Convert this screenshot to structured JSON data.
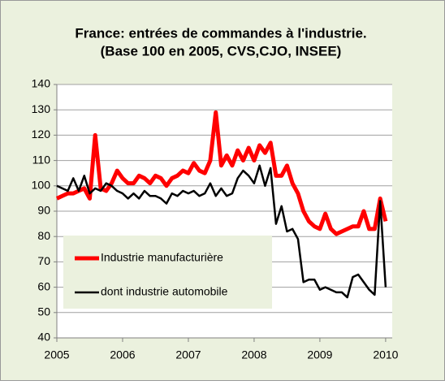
{
  "chart_data": {
    "type": "line",
    "title": "France: entrées de commandes à l'industrie.",
    "subtitle": "(Base 100 en 2005, CVS,CJO, INSEE)",
    "x": [
      2005,
      2005.083,
      2005.167,
      2005.25,
      2005.333,
      2005.417,
      2005.5,
      2005.583,
      2005.667,
      2005.75,
      2005.833,
      2005.917,
      2006,
      2006.083,
      2006.167,
      2006.25,
      2006.333,
      2006.417,
      2006.5,
      2006.583,
      2006.667,
      2006.75,
      2006.833,
      2006.917,
      2007,
      2007.083,
      2007.167,
      2007.25,
      2007.333,
      2007.417,
      2007.5,
      2007.583,
      2007.667,
      2007.75,
      2007.833,
      2007.917,
      2008,
      2008.083,
      2008.167,
      2008.25,
      2008.333,
      2008.417,
      2008.5,
      2008.583,
      2008.667,
      2008.75,
      2008.833,
      2008.917,
      2009,
      2009.083,
      2009.167,
      2009.25,
      2009.333,
      2009.417,
      2009.5,
      2009.583,
      2009.667,
      2009.75,
      2009.833,
      2009.917,
      2010
    ],
    "series": [
      {
        "name": "Industrie manufacturière",
        "color": "#ff0000",
        "width": 5,
        "values": [
          95,
          96,
          97,
          97,
          98,
          99,
          95,
          120,
          99,
          98,
          101,
          106,
          103,
          101,
          101,
          104,
          103,
          101,
          104,
          103,
          100,
          103,
          104,
          106,
          105,
          109,
          106,
          105,
          110,
          129,
          108,
          112,
          108,
          114,
          110,
          115,
          110,
          116,
          113,
          117,
          104,
          104,
          108,
          101,
          97,
          90,
          86,
          84,
          83,
          89,
          83,
          81,
          82,
          83,
          84,
          84,
          90,
          83,
          83,
          95,
          86
        ]
      },
      {
        "name": "dont industrie automobile",
        "color": "#000000",
        "width": 2.5,
        "values": [
          100,
          99,
          98,
          103,
          98,
          104,
          97,
          99,
          98,
          101,
          100,
          98,
          97,
          95,
          97,
          95,
          98,
          96,
          96,
          95,
          93,
          97,
          96,
          98,
          97,
          98,
          96,
          97,
          101,
          96,
          99,
          96,
          97,
          103,
          106,
          104,
          101,
          108,
          100,
          107,
          85,
          92,
          82,
          83,
          79,
          62,
          63,
          63,
          59,
          60,
          59,
          58,
          58,
          56,
          64,
          65,
          62,
          59,
          57,
          94,
          60
        ]
      }
    ],
    "xlim": [
      2005,
      2010.1
    ],
    "xticks": [
      2005,
      2006,
      2007,
      2008,
      2009,
      2010
    ],
    "ylim": [
      40,
      140
    ],
    "yticks": [
      40,
      50,
      60,
      70,
      80,
      90,
      100,
      110,
      120,
      130,
      140
    ],
    "grid": true,
    "legend": "bottom-left"
  }
}
